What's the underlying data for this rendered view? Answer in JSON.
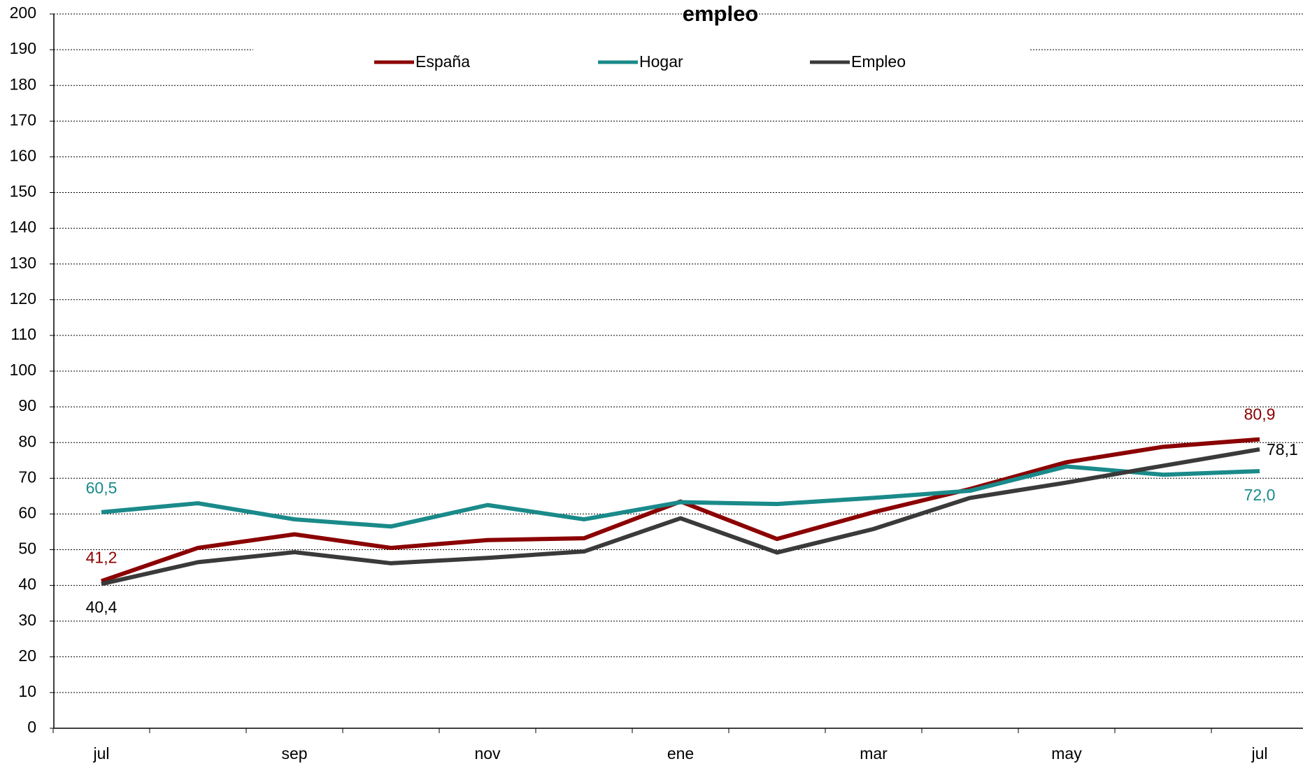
{
  "chart_data": {
    "type": "line",
    "title": "empleo",
    "categories": [
      "jul",
      null,
      "sep",
      null,
      "nov",
      null,
      "ene",
      null,
      "mar",
      null,
      "may",
      null,
      "jul"
    ],
    "series": [
      {
        "name": "España",
        "color": "#8b0000",
        "values": [
          41.2,
          50.5,
          54.3,
          50.5,
          52.7,
          53.2,
          63.5,
          53.0,
          60.5,
          67.0,
          74.5,
          78.8,
          80.9
        ],
        "value_labels": [
          "41,2",
          null,
          null,
          null,
          null,
          null,
          null,
          null,
          null,
          null,
          null,
          null,
          "80,9"
        ]
      },
      {
        "name": "Hogar",
        "color": "#1a8a8a",
        "values": [
          60.5,
          63.0,
          58.5,
          56.5,
          62.5,
          58.5,
          63.3,
          62.8,
          64.5,
          66.5,
          73.3,
          71.0,
          72.0
        ],
        "value_labels": [
          "60,5",
          null,
          null,
          null,
          null,
          null,
          null,
          null,
          null,
          null,
          null,
          null,
          "72,0"
        ]
      },
      {
        "name": "Empleo",
        "color": "#3a3a3a",
        "values": [
          40.4,
          46.5,
          49.3,
          46.2,
          47.7,
          49.5,
          58.8,
          49.2,
          55.8,
          64.5,
          68.8,
          73.5,
          78.1
        ],
        "value_labels": [
          "40,4",
          null,
          null,
          null,
          null,
          null,
          null,
          null,
          null,
          null,
          null,
          null,
          "78,1"
        ]
      }
    ],
    "ylim": [
      0,
      200
    ],
    "yticks": [
      0,
      10,
      20,
      30,
      40,
      50,
      60,
      70,
      80,
      90,
      100,
      110,
      120,
      130,
      140,
      150,
      160,
      170,
      180,
      190,
      200
    ],
    "grid": true
  }
}
